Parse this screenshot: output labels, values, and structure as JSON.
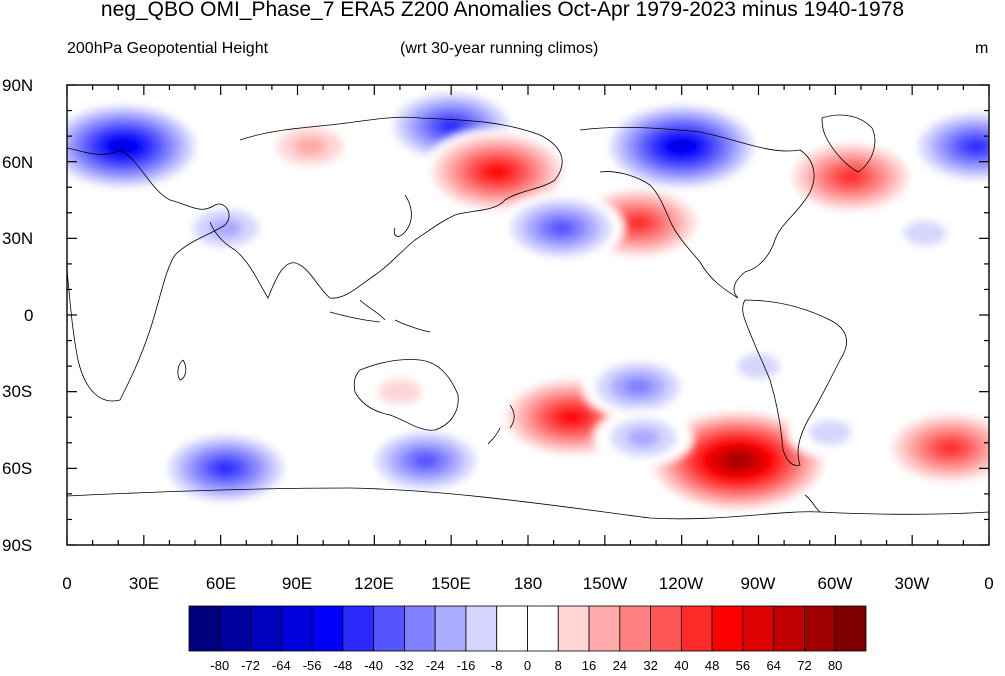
{
  "title": "neg_QBO OMI_Phase_7 ERA5 Z200 Anomalies Oct-Apr 1979-2023 minus 1940-1978",
  "subtitle_left": "200hPa Geopotential Height",
  "subtitle_center": "(wrt 30-year running climos)",
  "units": "m",
  "map": {
    "lon_range": [
      0,
      360
    ],
    "lat_range": [
      -90,
      90
    ],
    "y_ticks": [
      "90N",
      "60N",
      "30N",
      "0",
      "30S",
      "60S",
      "90S"
    ],
    "x_ticks": [
      "0",
      "30E",
      "60E",
      "90E",
      "120E",
      "150E",
      "180",
      "150W",
      "120W",
      "90W",
      "60W",
      "30W",
      "0"
    ]
  },
  "colorbar": {
    "labels": [
      "-80",
      "-72",
      "-64",
      "-56",
      "-48",
      "-40",
      "-32",
      "-24",
      "-16",
      "-8",
      "0",
      "8",
      "16",
      "24",
      "32",
      "40",
      "48",
      "56",
      "64",
      "72",
      "80"
    ],
    "colors": [
      "#00007f",
      "#00009f",
      "#0000bf",
      "#0000df",
      "#0000ff",
      "#2a2aff",
      "#5555ff",
      "#8080ff",
      "#aaaaff",
      "#d5d5ff",
      "#ffffff",
      "#ffffff",
      "#ffd5d5",
      "#ffaaaa",
      "#ff8080",
      "#ff5555",
      "#ff2a2a",
      "#ff0000",
      "#df0000",
      "#bf0000",
      "#9f0000",
      "#7f0000"
    ]
  },
  "anomaly_centers": [
    {
      "lon": 22,
      "lat": 66,
      "value": -64
    },
    {
      "lon": 150,
      "lat": 74,
      "value": -48
    },
    {
      "lon": 240,
      "lat": 66,
      "value": -64
    },
    {
      "lon": 355,
      "lat": 66,
      "value": -48
    },
    {
      "lon": 168,
      "lat": 56,
      "value": 56
    },
    {
      "lon": 223,
      "lat": 36,
      "value": 48
    },
    {
      "lon": 306,
      "lat": 54,
      "value": 48
    },
    {
      "lon": 95,
      "lat": 66,
      "value": 24
    },
    {
      "lon": 193,
      "lat": 34,
      "value": -40
    },
    {
      "lon": 62,
      "lat": 34,
      "value": -24
    },
    {
      "lon": 335,
      "lat": 32,
      "value": -16
    },
    {
      "lon": 262,
      "lat": -57,
      "value": 80
    },
    {
      "lon": 197,
      "lat": -40,
      "value": 56
    },
    {
      "lon": 345,
      "lat": -52,
      "value": 48
    },
    {
      "lon": 62,
      "lat": -60,
      "value": -48
    },
    {
      "lon": 140,
      "lat": -57,
      "value": -40
    },
    {
      "lon": 223,
      "lat": -28,
      "value": -32
    },
    {
      "lon": 225,
      "lat": -48,
      "value": -24
    },
    {
      "lon": 130,
      "lat": -30,
      "value": 16
    },
    {
      "lon": 270,
      "lat": -20,
      "value": -16
    },
    {
      "lon": 298,
      "lat": -46,
      "value": -16
    }
  ]
}
